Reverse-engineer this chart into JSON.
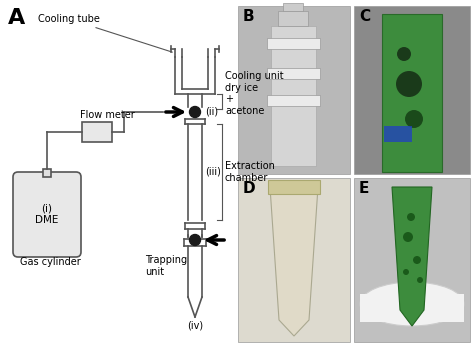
{
  "panel_A_label": "A",
  "panel_B_label": "B",
  "panel_C_label": "C",
  "panel_D_label": "D",
  "panel_E_label": "E",
  "bg_color": "#ffffff",
  "text_color": "#000000",
  "figsize": [
    4.74,
    3.52
  ],
  "dpi": 100
}
